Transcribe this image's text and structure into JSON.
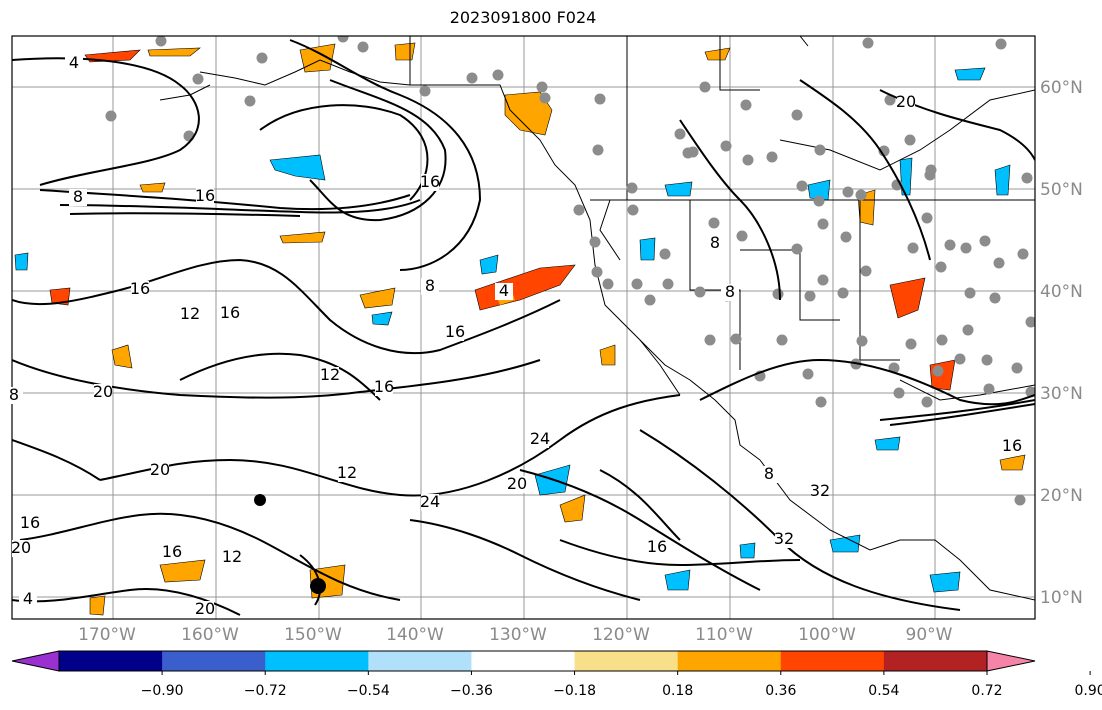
{
  "title": "2023091800 F024",
  "lon_labels": [
    "170°W",
    "160°W",
    "150°W",
    "140°W",
    "130°W",
    "120°W",
    "110°W",
    "100°W",
    "90°W"
  ],
  "lat_labels": [
    "60°N",
    "50°N",
    "40°N",
    "30°N",
    "20°N",
    "10°N"
  ],
  "colorbar": {
    "colors": [
      "#9b30d0",
      "#00008b",
      "#3a5fcd",
      "#00bfff",
      "#b0e0fa",
      "#ffffff",
      "#f8e08a",
      "#ffa500",
      "#ff4500",
      "#b22222",
      "#f584a8"
    ],
    "tick_labels": [
      "−0.90",
      "−0.72",
      "−0.54",
      "−0.36",
      "−0.18",
      "0.18",
      "0.36",
      "0.54",
      "0.72",
      "0.90"
    ]
  },
  "contour_labels": [
    "4",
    "8",
    "16",
    "4",
    "8",
    "12",
    "16",
    "16",
    "12",
    "16",
    "20",
    "20",
    "16",
    "8",
    "12",
    "16",
    "20",
    "24",
    "32",
    "16",
    "20",
    "8",
    "32",
    "24",
    "20",
    "4",
    "12",
    "16",
    "16",
    "8",
    "8",
    "20",
    "16"
  ]
}
